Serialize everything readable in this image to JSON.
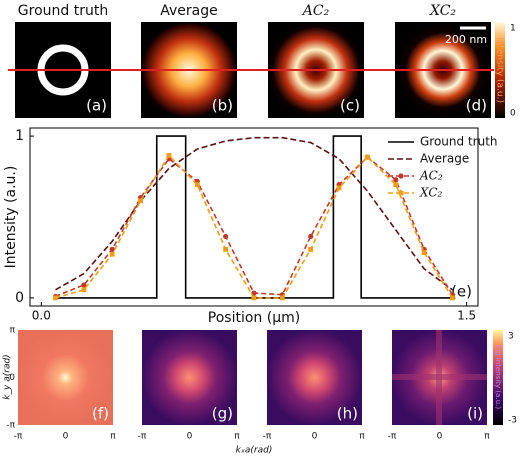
{
  "panels_top": [
    {
      "title": "Ground truth",
      "label": "(a)"
    },
    {
      "title": "Average",
      "label": "(b)"
    },
    {
      "title": "AC₂",
      "label": "(c)"
    },
    {
      "title": "XC₂",
      "label": "(d)"
    }
  ],
  "scale_bar": "200 nm",
  "colorbar_top": {
    "label": "Intensity (a.u.)",
    "ticks": [
      1,
      0
    ]
  },
  "chart_data": {
    "type": "line",
    "ylabel": "Intensity (a.u.)",
    "xlabel": "Position (μm)",
    "panel_label": "(e)",
    "xlim": [
      -0.04,
      1.54
    ],
    "ylim": [
      -0.05,
      1.05
    ],
    "xticks": [
      {
        "value": 0,
        "label": "0.0"
      },
      1.5
    ],
    "yticks": [
      0,
      1
    ],
    "legend": "upper right",
    "series": [
      {
        "name": "Ground truth",
        "color": "#000000",
        "dash": "none",
        "marker": "none",
        "x": [
          0.05,
          0.407,
          0.407,
          0.509,
          0.509,
          1.03,
          1.03,
          1.128,
          1.128,
          1.45
        ],
        "values": [
          0,
          0,
          1,
          1,
          0,
          0,
          1,
          1,
          0,
          0
        ]
      },
      {
        "name": "Average",
        "color": "#5a1010",
        "dash": "6 3",
        "marker": "none",
        "x": [
          0.05,
          0.15,
          0.25,
          0.35,
          0.45,
          0.55,
          0.65,
          0.75,
          0.85,
          0.95,
          1.05,
          1.15,
          1.25,
          1.35,
          1.45
        ],
        "values": [
          0.05,
          0.15,
          0.35,
          0.6,
          0.8,
          0.92,
          0.97,
          0.99,
          0.99,
          0.96,
          0.86,
          0.66,
          0.42,
          0.18,
          0.05
        ]
      },
      {
        "name": "AC₂",
        "color": "#c0392b",
        "dash": "5 3",
        "marker": "circle",
        "x": [
          0.05,
          0.15,
          0.25,
          0.35,
          0.45,
          0.55,
          0.65,
          0.75,
          0.85,
          0.95,
          1.05,
          1.15,
          1.25,
          1.35,
          1.45
        ],
        "values": [
          0.01,
          0.08,
          0.3,
          0.62,
          0.86,
          0.72,
          0.38,
          0.03,
          0.02,
          0.38,
          0.7,
          0.87,
          0.73,
          0.3,
          0.02
        ]
      },
      {
        "name": "XC₂",
        "color": "#f39c12",
        "dash": "5 3",
        "marker": "square",
        "x": [
          0.05,
          0.15,
          0.25,
          0.35,
          0.45,
          0.55,
          0.65,
          0.75,
          0.85,
          0.95,
          1.05,
          1.15,
          1.25,
          1.35,
          1.45
        ],
        "values": [
          0,
          0.05,
          0.27,
          0.6,
          0.88,
          0.7,
          0.3,
          0,
          0,
          0.3,
          0.68,
          0.87,
          0.7,
          0.28,
          0
        ]
      }
    ]
  },
  "panels_bottom": [
    {
      "label": "(f)"
    },
    {
      "label": "(g)"
    },
    {
      "label": "(h)"
    },
    {
      "label": "(i)"
    }
  ],
  "k_ticks": [
    "-π",
    "0",
    "π"
  ],
  "kx_label": "kₓa(rad)",
  "ky_label": "k_y a(rad)",
  "colorbar_bottom": {
    "label": "log intensity (a.u.)",
    "ticks": [
      3,
      -3
    ]
  }
}
